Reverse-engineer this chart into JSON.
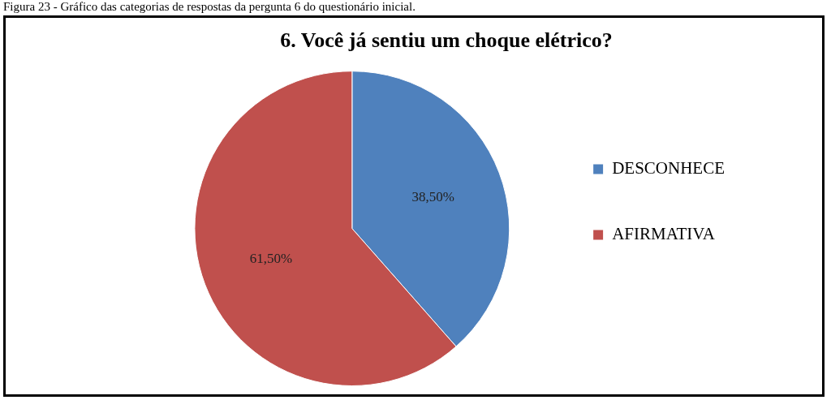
{
  "chart_data": {
    "type": "pie",
    "title": "6. Você já sentiu um choque elétrico?",
    "categories": [
      "DESCONHECE",
      "AFIRMATIVA"
    ],
    "values": [
      38.5,
      61.5
    ],
    "colors": [
      "#4f81bd",
      "#c0504d"
    ],
    "value_labels": [
      "38,50%",
      "61,50%"
    ],
    "legend": "right",
    "annotations": [
      "Figura 23 - Gráfico das categorias de respostas da pergunta 6 do questionário inicial."
    ]
  }
}
